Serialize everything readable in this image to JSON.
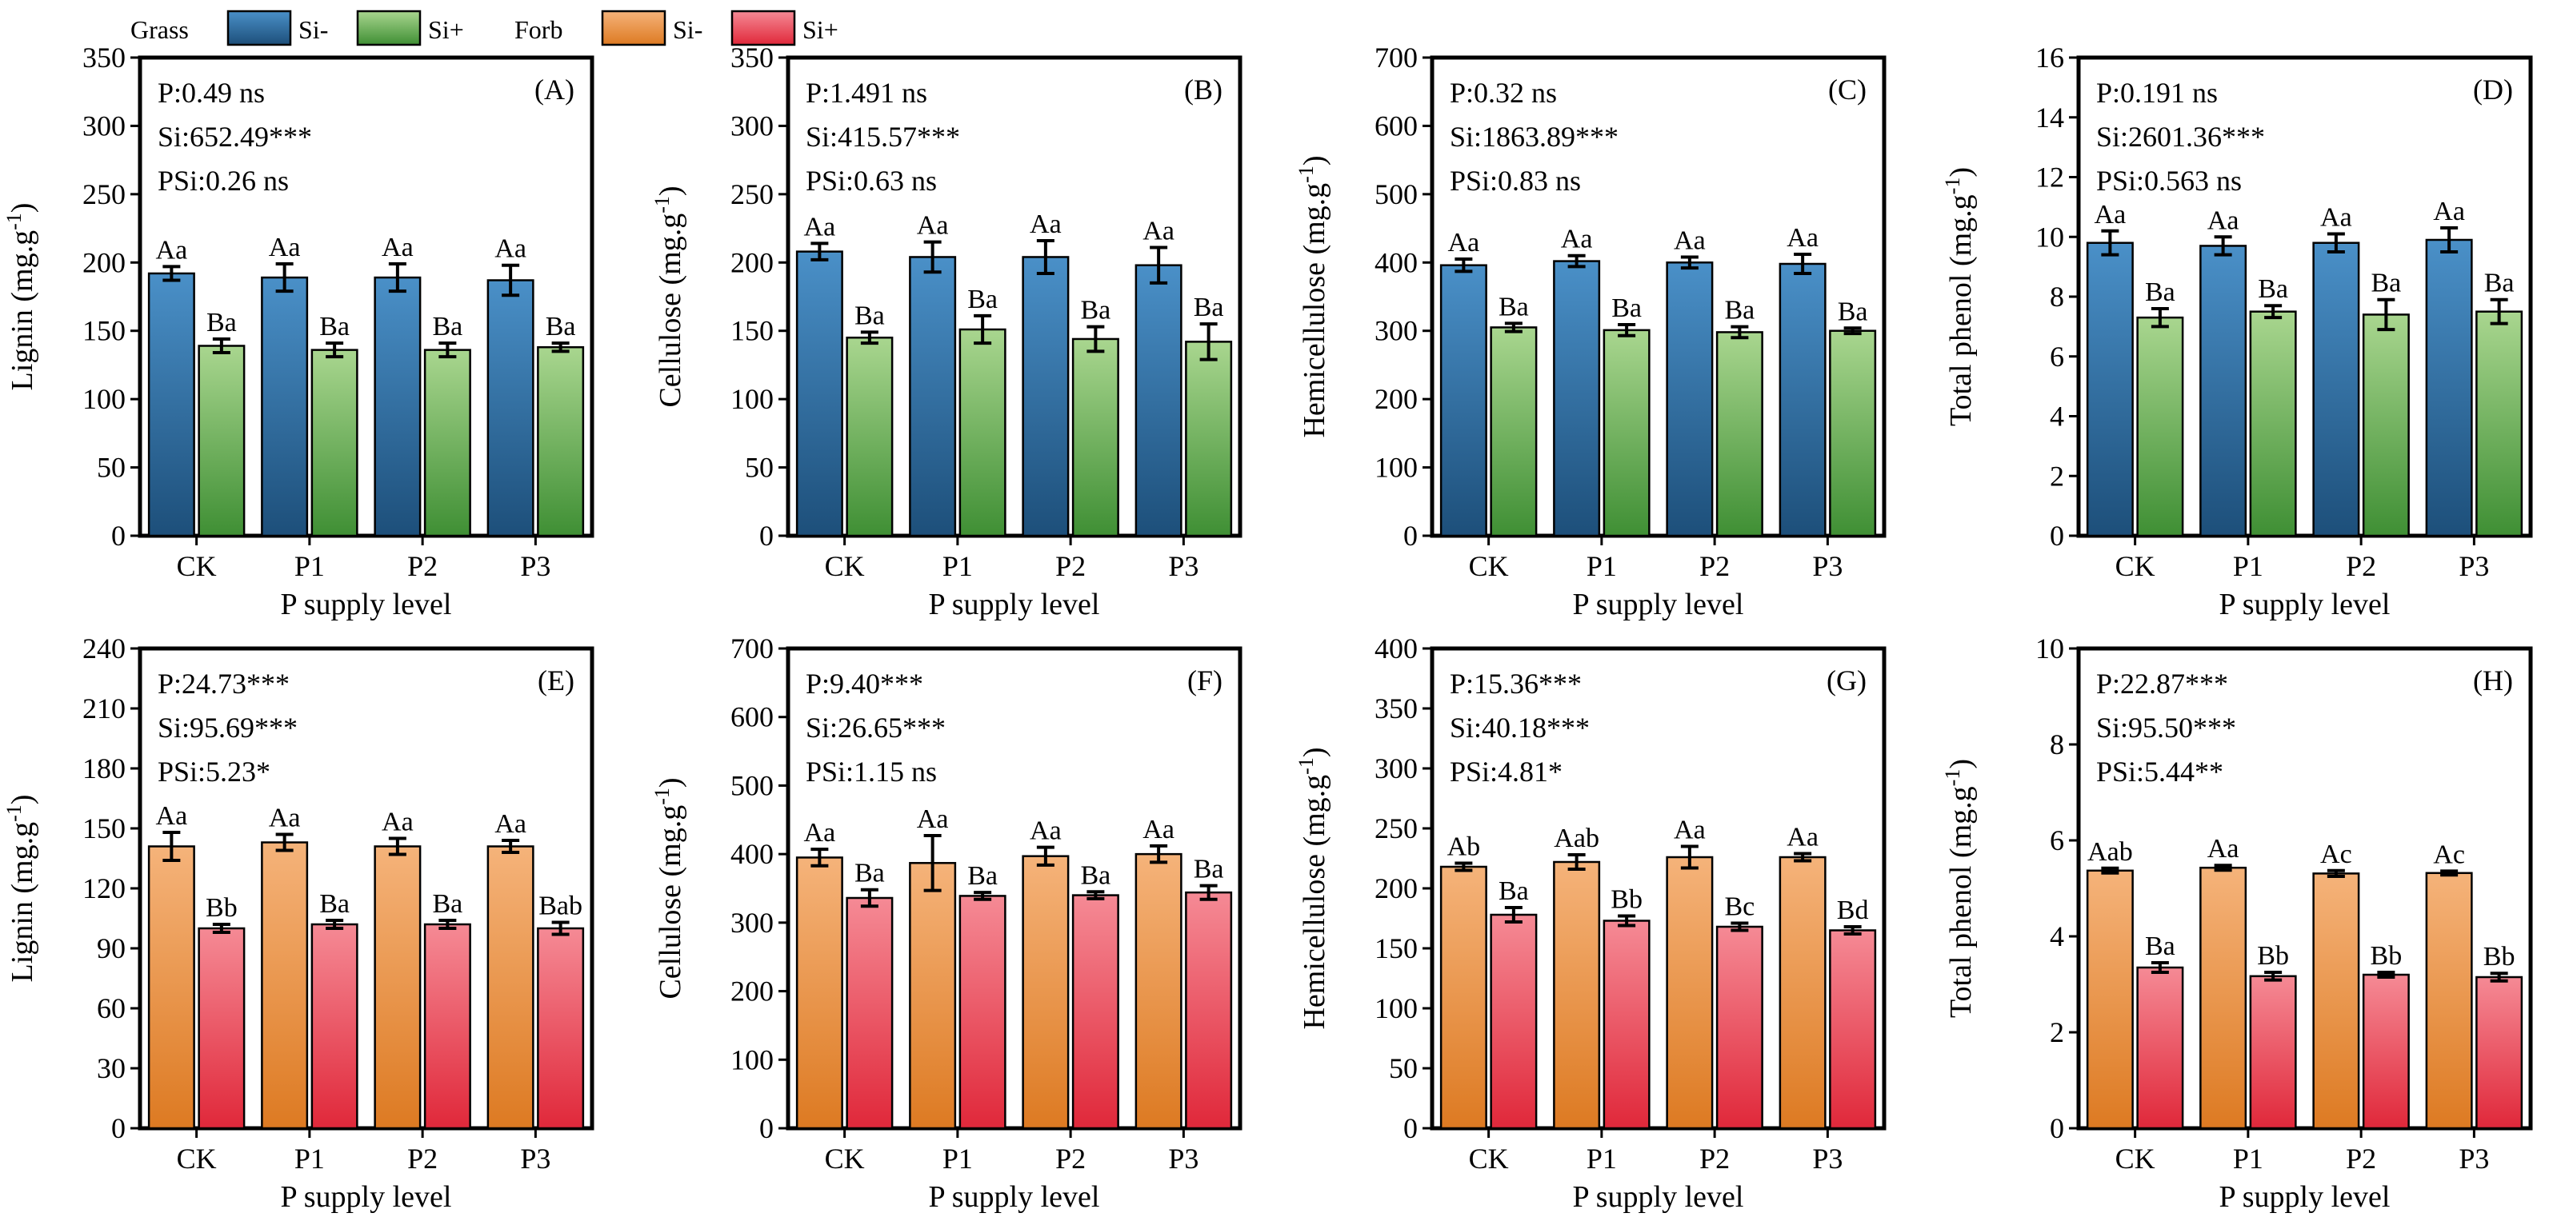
{
  "legend": {
    "groups": [
      {
        "name": "Grass",
        "items": [
          {
            "label": "Si-",
            "top": "#4a90c8",
            "bottom": "#1d4f7a"
          },
          {
            "label": "Si+",
            "top": "#a9d68f",
            "bottom": "#3f8f34"
          }
        ]
      },
      {
        "name": "Forb",
        "items": [
          {
            "label": "Si-",
            "top": "#f5b37a",
            "bottom": "#dd7a22"
          },
          {
            "label": "Si+",
            "top": "#f58a95",
            "bottom": "#e0283a"
          }
        ]
      }
    ]
  },
  "chart_data": [
    {
      "type": "bar",
      "panel": "(A)",
      "ylabel": "Lignin",
      "xlabel": "P supply level",
      "categories": [
        "CK",
        "P1",
        "P2",
        "P3"
      ],
      "ylim": [
        0,
        350
      ],
      "yticks": [
        0,
        50,
        100,
        150,
        200,
        250,
        300,
        350
      ],
      "stats": [
        "P:0.49 ns",
        "Si:652.49***",
        "PSi:0.26 ns"
      ],
      "group": "Grass",
      "series": [
        {
          "name": "Si-",
          "values": [
            192,
            189,
            189,
            187
          ],
          "errors": [
            5,
            10,
            10,
            11
          ],
          "labels": [
            "Aa",
            "Aa",
            "Aa",
            "Aa"
          ]
        },
        {
          "name": "Si+",
          "values": [
            139,
            136,
            136,
            138
          ],
          "errors": [
            5,
            5,
            5,
            3
          ],
          "labels": [
            "Ba",
            "Ba",
            "Ba",
            "Ba"
          ]
        }
      ]
    },
    {
      "type": "bar",
      "panel": "(B)",
      "ylabel": "Cellulose",
      "xlabel": "P supply level",
      "categories": [
        "CK",
        "P1",
        "P2",
        "P3"
      ],
      "ylim": [
        0,
        350
      ],
      "yticks": [
        0,
        50,
        100,
        150,
        200,
        250,
        300,
        350
      ],
      "stats": [
        "P:1.491 ns",
        "Si:415.57***",
        "PSi:0.63 ns"
      ],
      "group": "Grass",
      "series": [
        {
          "name": "Si-",
          "values": [
            208,
            204,
            204,
            198
          ],
          "errors": [
            6,
            11,
            12,
            13
          ],
          "labels": [
            "Aa",
            "Aa",
            "Aa",
            "Aa"
          ]
        },
        {
          "name": "Si+",
          "values": [
            145,
            151,
            144,
            142
          ],
          "errors": [
            4,
            10,
            9,
            13
          ],
          "labels": [
            "Ba",
            "Ba",
            "Ba",
            "Ba"
          ]
        }
      ]
    },
    {
      "type": "bar",
      "panel": "(C)",
      "ylabel": "Hemicellulose",
      "xlabel": "P supply level",
      "categories": [
        "CK",
        "P1",
        "P2",
        "P3"
      ],
      "ylim": [
        0,
        700
      ],
      "yticks": [
        0,
        100,
        200,
        300,
        400,
        500,
        600,
        700
      ],
      "stats": [
        "P:0.32 ns",
        "Si:1863.89***",
        "PSi:0.83 ns"
      ],
      "group": "Grass",
      "series": [
        {
          "name": "Si-",
          "values": [
            396,
            402,
            400,
            398
          ],
          "errors": [
            9,
            8,
            8,
            14
          ],
          "labels": [
            "Aa",
            "Aa",
            "Aa",
            "Aa"
          ]
        },
        {
          "name": "Si+",
          "values": [
            305,
            301,
            298,
            300
          ],
          "errors": [
            6,
            8,
            8,
            4
          ],
          "labels": [
            "Ba",
            "Ba",
            "Ba",
            "Ba"
          ]
        }
      ]
    },
    {
      "type": "bar",
      "panel": "(D)",
      "ylabel": "Total phenol",
      "xlabel": "P supply level",
      "categories": [
        "CK",
        "P1",
        "P2",
        "P3"
      ],
      "ylim": [
        0,
        16
      ],
      "yticks": [
        0,
        2,
        4,
        6,
        8,
        10,
        12,
        14,
        16
      ],
      "stats": [
        "P:0.191 ns",
        "Si:2601.36***",
        "PSi:0.563 ns"
      ],
      "group": "Grass",
      "series": [
        {
          "name": "Si-",
          "values": [
            9.8,
            9.7,
            9.8,
            9.9
          ],
          "errors": [
            0.4,
            0.3,
            0.3,
            0.4
          ],
          "labels": [
            "Aa",
            "Aa",
            "Aa",
            "Aa"
          ]
        },
        {
          "name": "Si+",
          "values": [
            7.3,
            7.5,
            7.4,
            7.5
          ],
          "errors": [
            0.3,
            0.2,
            0.5,
            0.4
          ],
          "labels": [
            "Ba",
            "Ba",
            "Ba",
            "Ba"
          ]
        }
      ]
    },
    {
      "type": "bar",
      "panel": "(E)",
      "ylabel": "Lignin",
      "xlabel": "P supply level",
      "categories": [
        "CK",
        "P1",
        "P2",
        "P3"
      ],
      "ylim": [
        0,
        240
      ],
      "yticks": [
        0,
        30,
        60,
        90,
        120,
        150,
        180,
        210,
        240
      ],
      "stats": [
        "P:24.73***",
        "Si:95.69***",
        "PSi:5.23*"
      ],
      "group": "Forb",
      "series": [
        {
          "name": "Si-",
          "values": [
            141,
            143,
            141,
            141
          ],
          "errors": [
            7,
            4,
            4,
            3
          ],
          "labels": [
            "Aa",
            "Aa",
            "Aa",
            "Aa"
          ]
        },
        {
          "name": "Si+",
          "values": [
            100,
            102,
            102,
            100
          ],
          "errors": [
            2,
            2,
            2,
            3
          ],
          "labels": [
            "Bb",
            "Ba",
            "Ba",
            "Bab"
          ]
        }
      ]
    },
    {
      "type": "bar",
      "panel": "(F)",
      "ylabel": "Cellulose",
      "xlabel": "P supply level",
      "categories": [
        "CK",
        "P1",
        "P2",
        "P3"
      ],
      "ylim": [
        0,
        700
      ],
      "yticks": [
        0,
        100,
        200,
        300,
        400,
        500,
        600,
        700
      ],
      "stats": [
        "P:9.40***",
        "Si:26.65***",
        "PSi:1.15 ns"
      ],
      "group": "Forb",
      "series": [
        {
          "name": "Si-",
          "values": [
            395,
            387,
            397,
            400
          ],
          "errors": [
            12,
            40,
            13,
            12
          ],
          "labels": [
            "Aa",
            "Aa",
            "Aa",
            "Aa"
          ]
        },
        {
          "name": "Si+",
          "values": [
            336,
            339,
            340,
            344
          ],
          "errors": [
            12,
            5,
            5,
            10
          ],
          "labels": [
            "Ba",
            "Ba",
            "Ba",
            "Ba"
          ]
        }
      ]
    },
    {
      "type": "bar",
      "panel": "(G)",
      "ylabel": "Hemicellulose",
      "xlabel": "P supply level",
      "categories": [
        "CK",
        "P1",
        "P2",
        "P3"
      ],
      "ylim": [
        0,
        400
      ],
      "yticks": [
        0,
        50,
        100,
        150,
        200,
        250,
        300,
        350,
        400
      ],
      "stats": [
        "P:15.36***",
        "Si:40.18***",
        "PSi:4.81*"
      ],
      "group": "Forb",
      "series": [
        {
          "name": "Si-",
          "values": [
            218,
            222,
            226,
            226
          ],
          "errors": [
            3,
            6,
            9,
            3
          ],
          "labels": [
            "Ab",
            "Aab",
            "Aa",
            "Aa"
          ]
        },
        {
          "name": "Si+",
          "values": [
            178,
            173,
            168,
            165
          ],
          "errors": [
            6,
            4,
            3,
            3
          ],
          "labels": [
            "Ba",
            "Bb",
            "Bc",
            "Bd"
          ]
        }
      ]
    },
    {
      "type": "bar",
      "panel": "(H)",
      "ylabel": "Total phenol",
      "xlabel": "P supply level",
      "categories": [
        "CK",
        "P1",
        "P2",
        "P3"
      ],
      "ylim": [
        0,
        10
      ],
      "yticks": [
        0,
        2,
        4,
        6,
        8,
        10
      ],
      "stats": [
        "P:22.87***",
        "Si:95.50***",
        "PSi:5.44**"
      ],
      "group": "Forb",
      "series": [
        {
          "name": "Si-",
          "values": [
            5.37,
            5.43,
            5.31,
            5.32
          ],
          "errors": [
            0.05,
            0.05,
            0.06,
            0.04
          ],
          "labels": [
            "Aab",
            "Aa",
            "Ac",
            "Ac"
          ]
        },
        {
          "name": "Si+",
          "values": [
            3.35,
            3.17,
            3.2,
            3.15
          ],
          "errors": [
            0.1,
            0.08,
            0.05,
            0.08
          ],
          "labels": [
            "Ba",
            "Bb",
            "Bb",
            "Bb"
          ]
        }
      ]
    }
  ],
  "unit": "(mg.g",
  "unit_exp": "-1",
  "unit_close": ")"
}
